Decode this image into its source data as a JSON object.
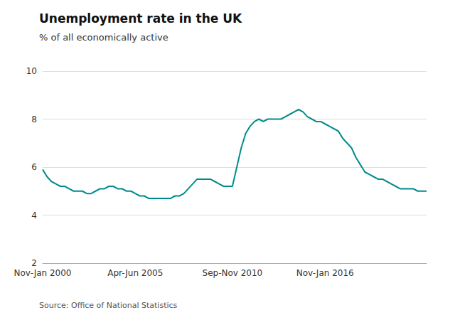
{
  "chart_data": {
    "type": "line",
    "title": "Unemployment rate in the UK",
    "subtitle": "% of all economically active",
    "source": "Source: Office of National Statistics",
    "color": "#008B8B",
    "ylim": [
      2,
      10
    ],
    "yticks": [
      2,
      4,
      6,
      8,
      10
    ],
    "grid": true,
    "categories": [
      "Nov-Jan 2000",
      null,
      null,
      null,
      null,
      null,
      null,
      null,
      null,
      null,
      null,
      null,
      null,
      null,
      null,
      null,
      null,
      null,
      null,
      null,
      null,
      "Apr-Jun 2005",
      null,
      null,
      null,
      null,
      null,
      null,
      null,
      null,
      null,
      null,
      null,
      null,
      null,
      null,
      null,
      null,
      null,
      null,
      null,
      null,
      null,
      "Sep-Nov 2010",
      null,
      null,
      null,
      null,
      null,
      null,
      null,
      null,
      null,
      null,
      null,
      null,
      null,
      null,
      null,
      null,
      null,
      null,
      null,
      null,
      "Nov-Jan 2016",
      null,
      null,
      null,
      null,
      null,
      null,
      null,
      null,
      null,
      null,
      null,
      null,
      null,
      null,
      null,
      null,
      null,
      null,
      null,
      null,
      null,
      null,
      null
    ],
    "values": [
      5.9,
      5.6,
      5.4,
      5.3,
      5.2,
      5.2,
      5.1,
      5.0,
      5.0,
      5.0,
      4.9,
      4.9,
      5.0,
      5.1,
      5.1,
      5.2,
      5.2,
      5.1,
      5.1,
      5.0,
      5.0,
      4.9,
      4.8,
      4.8,
      4.7,
      4.7,
      4.7,
      4.7,
      4.7,
      4.7,
      4.8,
      4.8,
      4.9,
      5.1,
      5.3,
      5.5,
      5.5,
      5.5,
      5.5,
      5.4,
      5.3,
      5.2,
      5.2,
      5.2,
      6.0,
      6.8,
      7.4,
      7.7,
      7.9,
      8.0,
      7.9,
      8.0,
      8.0,
      8.0,
      8.0,
      8.1,
      8.2,
      8.3,
      8.4,
      8.3,
      8.1,
      8.0,
      7.9,
      7.9,
      7.8,
      7.7,
      7.6,
      7.5,
      7.2,
      7.0,
      6.8,
      6.4,
      6.1,
      5.8,
      5.7,
      5.6,
      5.5,
      5.5,
      5.4,
      5.3,
      5.2,
      5.1,
      5.1,
      5.1,
      5.1,
      5.0,
      5.0,
      5.0
    ]
  }
}
